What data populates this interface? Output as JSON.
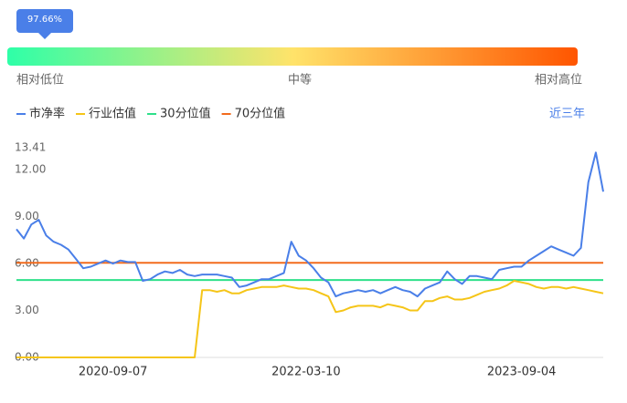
{
  "gauge": {
    "value": 97.66,
    "value_label": "97.66%",
    "colors": [
      "#2effa8",
      "#ffe36a",
      "#ff5500"
    ],
    "labels": [
      "相对低位",
      "中等",
      "相对高位"
    ]
  },
  "chart_data": {
    "type": "line",
    "range_button": "近三年",
    "categories": [
      null,
      null,
      null,
      null,
      null,
      null,
      null,
      null,
      null,
      null,
      null,
      null,
      null,
      "2020-09-07",
      null,
      null,
      null,
      null,
      null,
      null,
      null,
      null,
      null,
      null,
      null,
      null,
      null,
      null,
      null,
      null,
      null,
      null,
      null,
      null,
      null,
      null,
      null,
      null,
      null,
      "2022-03-10",
      null,
      null,
      null,
      null,
      null,
      null,
      null,
      null,
      null,
      null,
      null,
      null,
      null,
      null,
      null,
      null,
      null,
      null,
      null,
      null,
      null,
      null,
      null,
      null,
      null,
      null,
      null,
      null,
      "2023-09-04",
      null,
      null,
      null,
      null,
      null,
      null,
      null,
      null,
      null,
      null,
      null
    ],
    "series": [
      {
        "name": "市净率",
        "color": "#4a7fe8",
        "values": [
          8.2,
          7.6,
          8.5,
          8.8,
          7.8,
          7.4,
          7.2,
          6.9,
          6.3,
          5.7,
          5.8,
          6.0,
          6.2,
          6.0,
          6.2,
          6.1,
          6.1,
          4.9,
          5.0,
          5.3,
          5.5,
          5.4,
          5.6,
          5.3,
          5.2,
          5.3,
          5.3,
          5.3,
          5.2,
          5.1,
          4.5,
          4.6,
          4.8,
          5.0,
          5.0,
          5.2,
          5.4,
          7.4,
          6.5,
          6.2,
          5.7,
          5.1,
          4.8,
          3.9,
          4.1,
          4.2,
          4.3,
          4.2,
          4.3,
          4.1,
          4.3,
          4.5,
          4.3,
          4.2,
          3.9,
          4.4,
          4.6,
          4.8,
          5.5,
          5.0,
          4.7,
          5.2,
          5.2,
          5.1,
          5.0,
          5.6,
          5.7,
          5.8,
          5.8,
          6.2,
          6.5,
          6.8,
          7.1,
          6.9,
          6.7,
          6.5,
          7.0,
          11.2,
          13.1,
          10.6
        ]
      },
      {
        "name": "行业估值",
        "color": "#f5c518",
        "values": [
          0,
          0,
          0,
          0,
          0,
          0,
          0,
          0,
          0,
          0,
          0,
          0,
          0,
          0,
          0,
          0,
          0,
          0,
          0,
          0,
          0,
          0,
          0,
          0,
          0,
          4.3,
          4.3,
          4.2,
          4.3,
          4.1,
          4.1,
          4.3,
          4.4,
          4.5,
          4.5,
          4.5,
          4.6,
          4.5,
          4.4,
          4.4,
          4.3,
          4.1,
          3.9,
          2.9,
          3.0,
          3.2,
          3.3,
          3.3,
          3.3,
          3.2,
          3.4,
          3.3,
          3.2,
          3.0,
          3.0,
          3.6,
          3.6,
          3.8,
          3.9,
          3.7,
          3.7,
          3.8,
          4.0,
          4.2,
          4.3,
          4.4,
          4.6,
          4.9,
          4.8,
          4.7,
          4.5,
          4.4,
          4.5,
          4.5,
          4.4,
          4.5,
          4.4,
          4.3,
          4.2,
          4.1
        ]
      }
    ],
    "reference_lines": [
      {
        "name": "30分位值",
        "color": "#2ee08a",
        "value": 4.95
      },
      {
        "name": "70分位值",
        "color": "#f26b1d",
        "value": 6.05
      }
    ],
    "ylim": [
      0,
      13.41
    ],
    "yticks": [
      {
        "value": 0,
        "label": "0.00"
      },
      {
        "value": 3,
        "label": "3.00"
      },
      {
        "value": 6,
        "label": "6.00"
      },
      {
        "value": 9,
        "label": "9.00"
      },
      {
        "value": 12,
        "label": "12.00"
      },
      13.41
    ]
  }
}
